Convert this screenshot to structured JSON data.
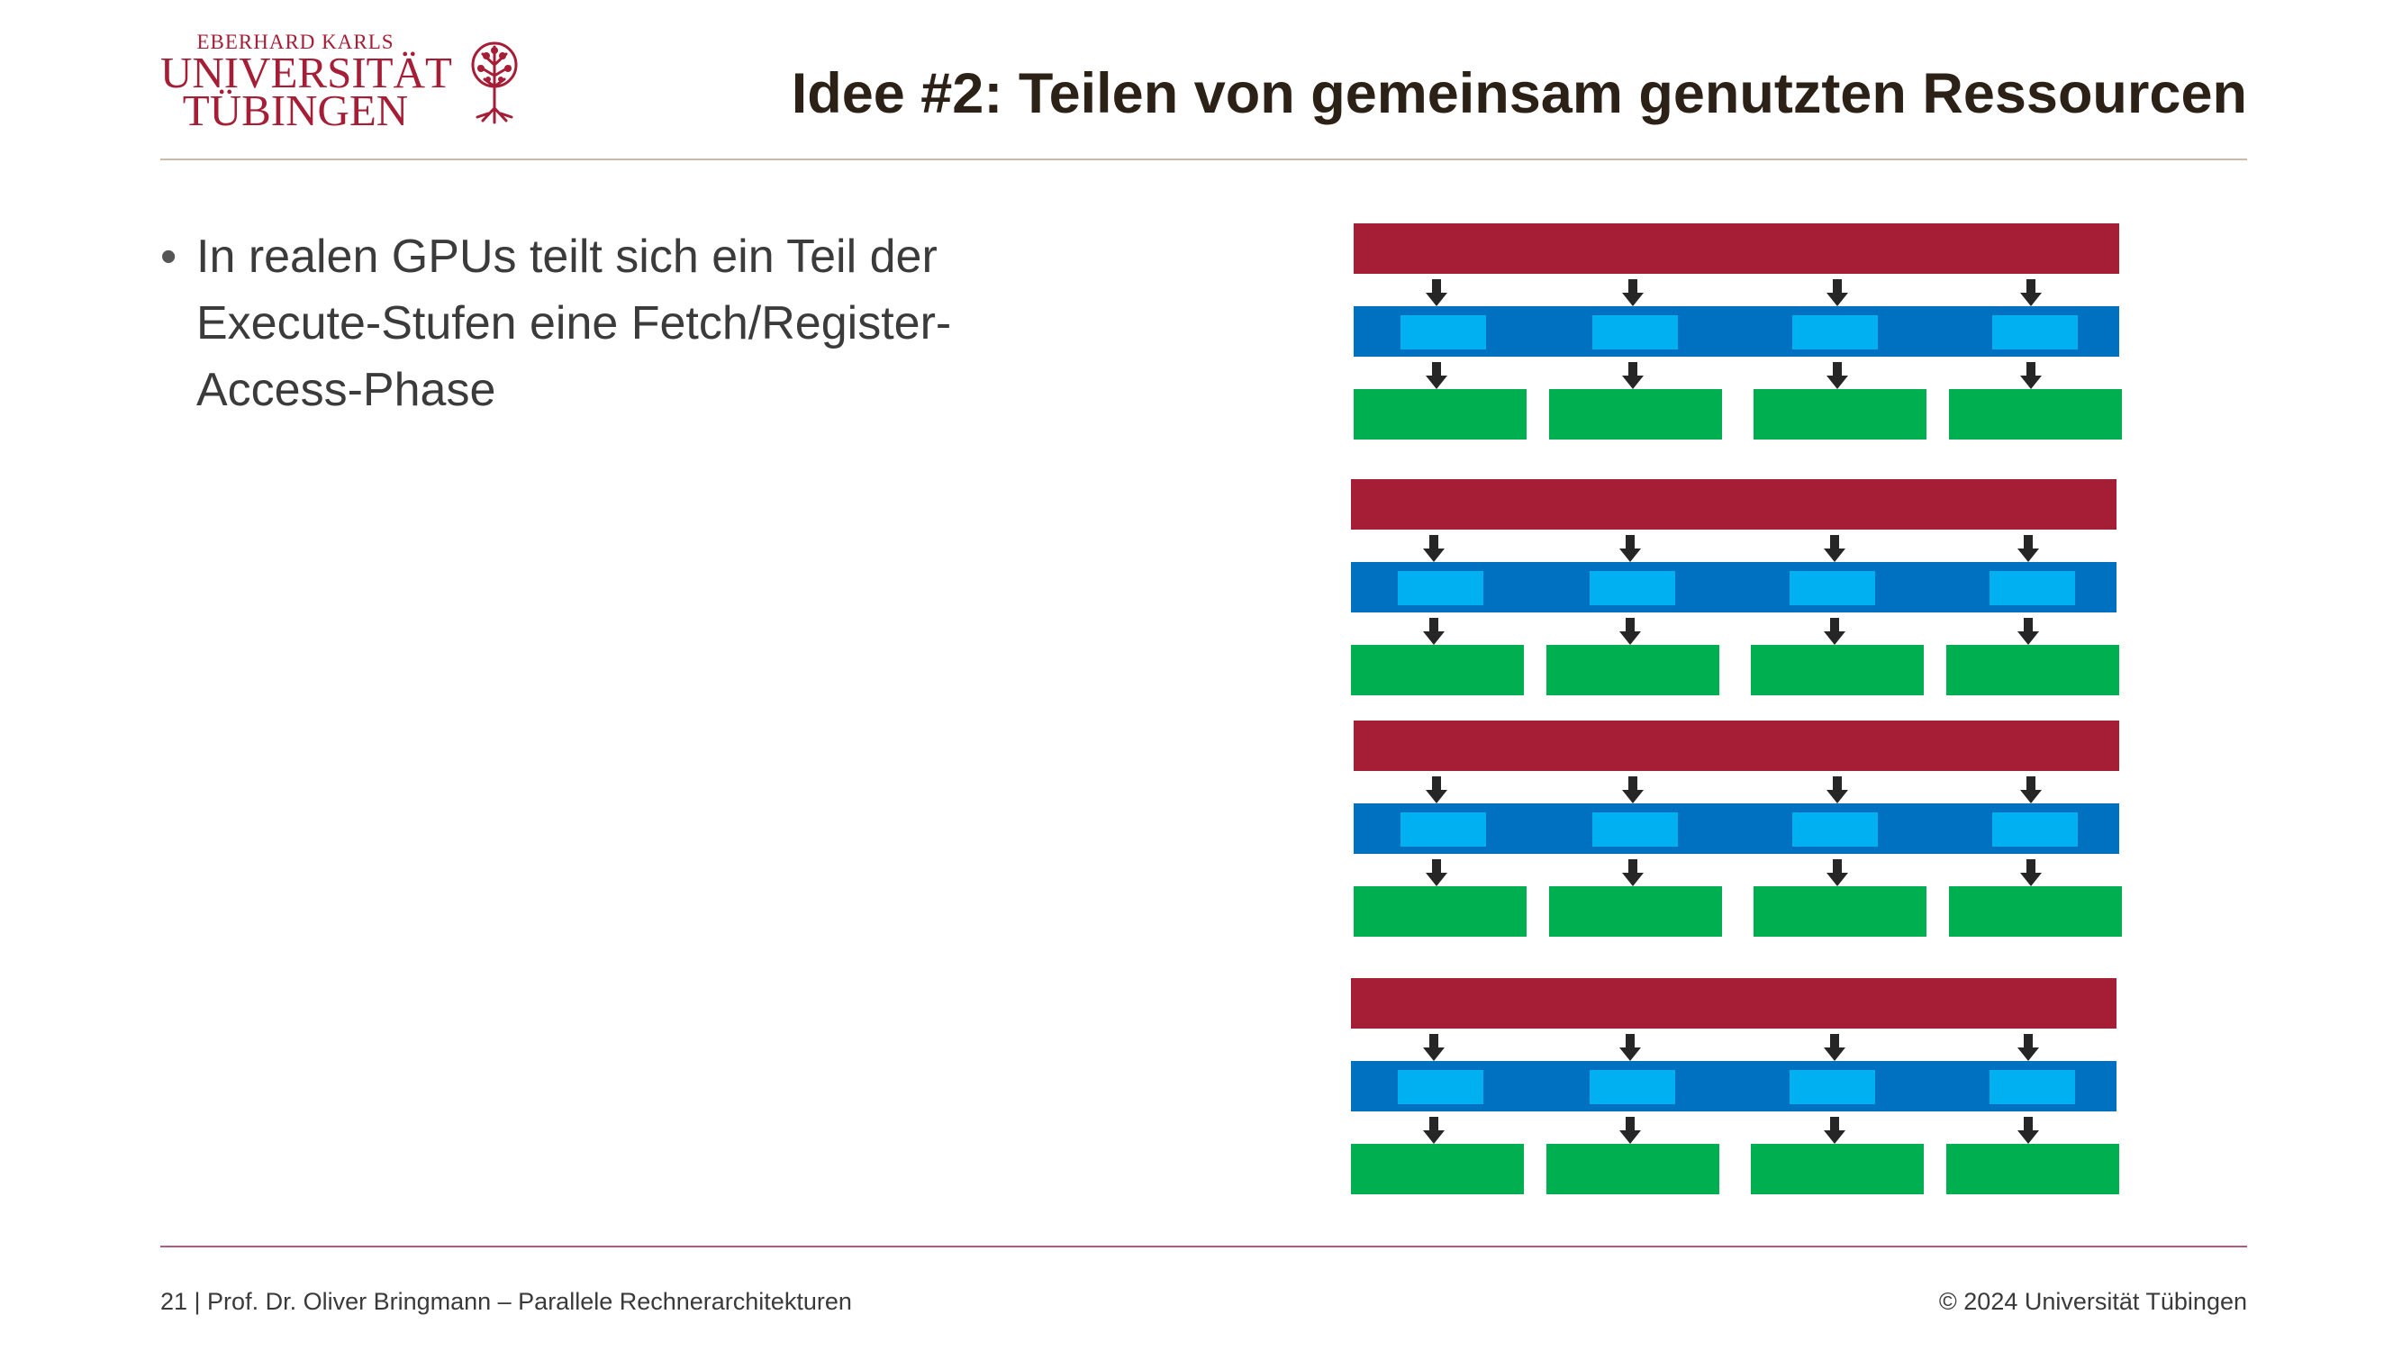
{
  "header": {
    "logo": {
      "line_small": "EBERHARD KARLS",
      "line1": "UNIVERSITÄT",
      "line2": "TÜBINGEN"
    },
    "title": "Idee #2: Teilen von gemeinsam genutzten Ressourcen"
  },
  "content": {
    "bullets": [
      {
        "marker": "•",
        "text": "In realen GPUs teilt sich ein Teil der Execute-Stufen eine Fetch/Register-Access-Phase"
      }
    ]
  },
  "diagram": {
    "groups": 4,
    "units_per_group": 4,
    "colors": {
      "fetch": "#a51e36",
      "register_bar": "#0070c0",
      "register_unit": "#00b0f0",
      "execute": "#00b050",
      "arrow": "#262626"
    }
  },
  "footer": {
    "left": "21 | Prof. Dr. Oliver Bringmann – Parallele Rechnerarchitekturen",
    "right": "© 2024 Universität Tübingen"
  },
  "colors": {
    "title": "#2c2116",
    "accent": "#a51e36",
    "rule_top": "#cbb9a8",
    "rule_bottom": "#b45a78"
  }
}
